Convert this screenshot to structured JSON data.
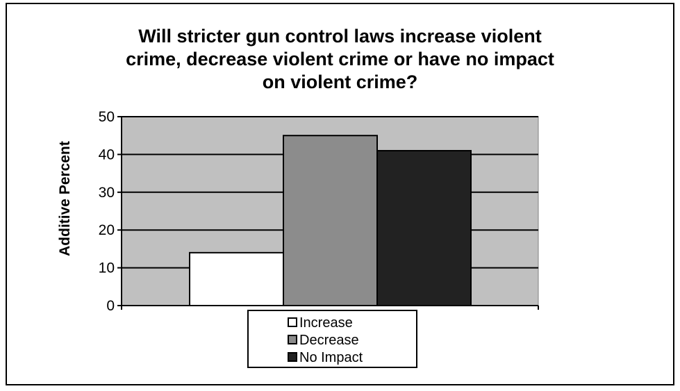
{
  "chart_data": {
    "type": "bar",
    "title_lines": [
      "Will stricter gun control laws increase violent",
      "crime, decrease violent crime or have no impact",
      "on violent crime?"
    ],
    "ylabel": "Additive Percent",
    "ylim": [
      0,
      50
    ],
    "yticks": [
      0,
      10,
      20,
      30,
      40,
      50
    ],
    "grid": true,
    "legend_position": "bottom",
    "series": [
      {
        "name": "Increase",
        "value": 14,
        "color": "#ffffff"
      },
      {
        "name": "Decrease",
        "value": 45,
        "color": "#8c8c8c"
      },
      {
        "name": "No Impact",
        "value": 41,
        "color": "#222222"
      }
    ],
    "plot_background": "#c0c0c0"
  }
}
